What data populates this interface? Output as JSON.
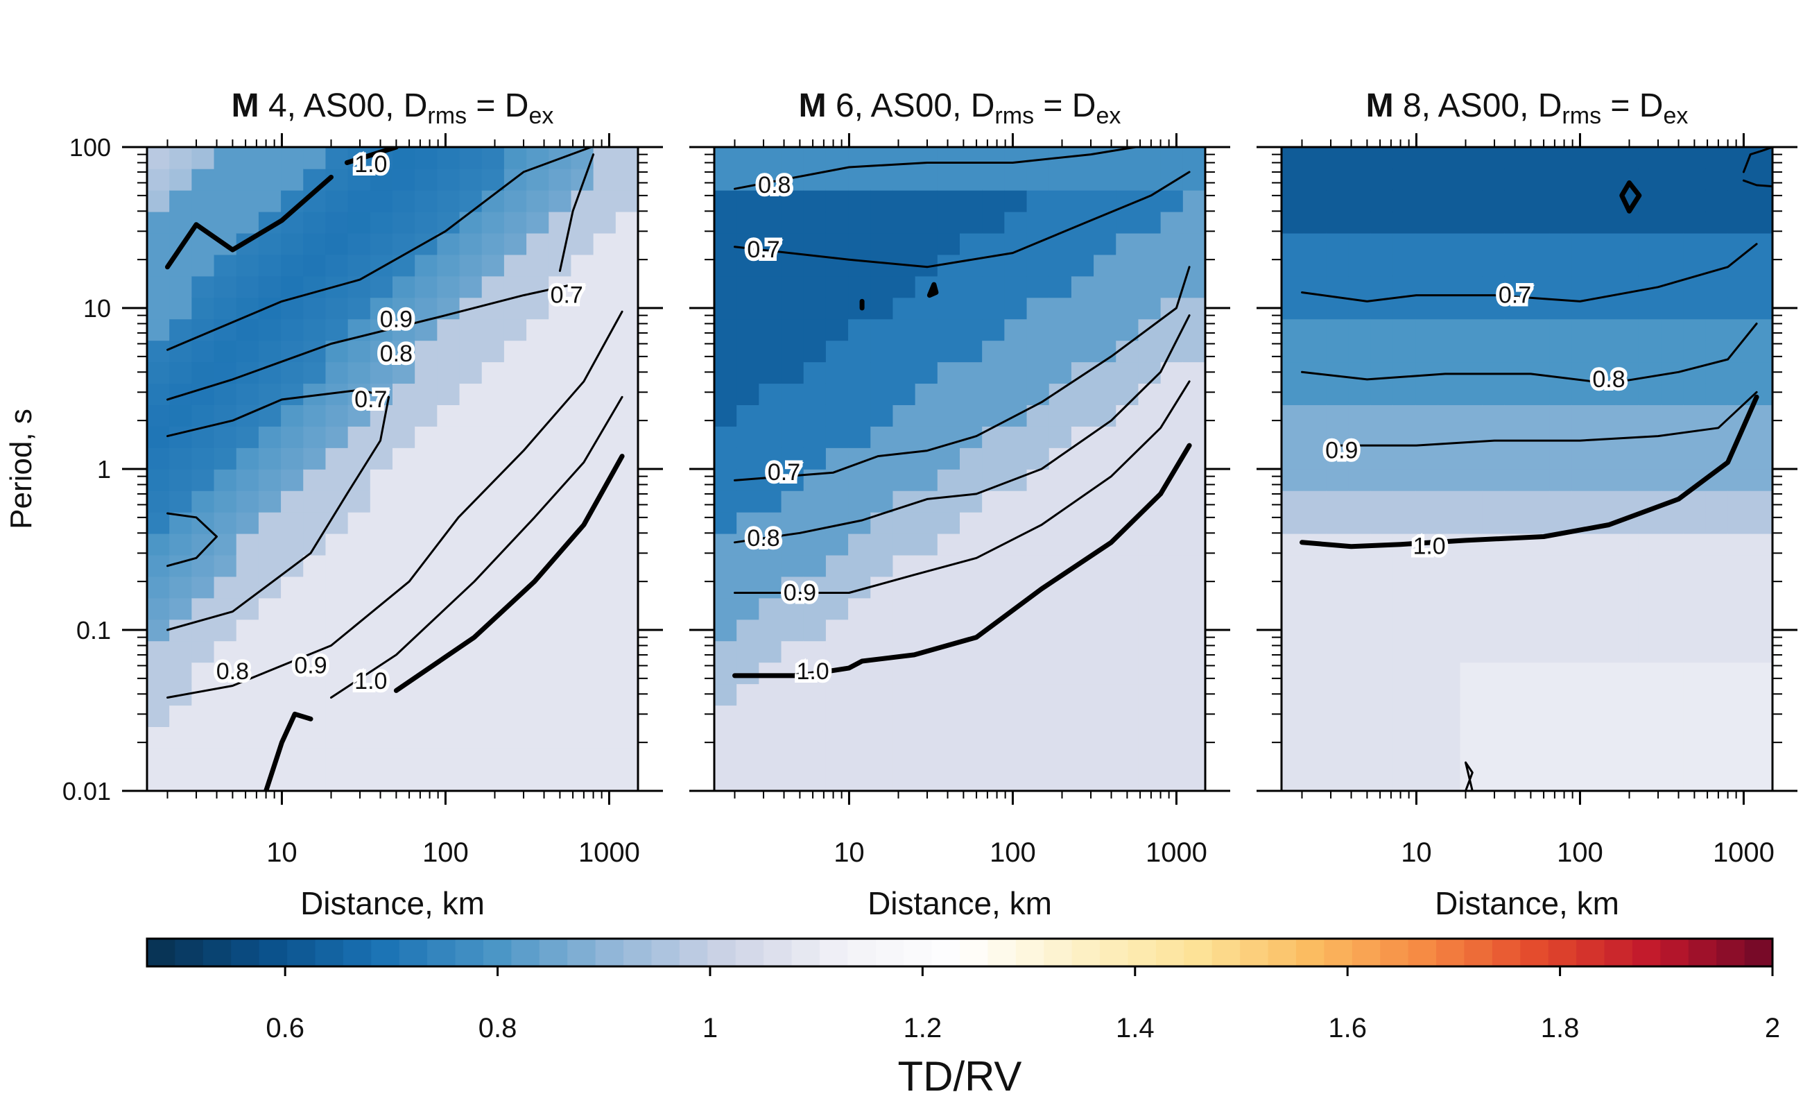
{
  "chart_data": {
    "type": "heatmap",
    "panels": [
      {
        "title": {
          "bold": "M",
          "rest": " 4, AS00, D",
          "sub1": "rms",
          "eq": " = D",
          "sub2": "ex"
        },
        "xlabel": "Distance, km",
        "ylabel": "Period, s",
        "x_scale": "log",
        "y_scale": "log",
        "xlim": [
          1.5,
          1500
        ],
        "ylim": [
          0.01,
          100
        ],
        "x_ticks": [
          "10",
          "100",
          "1000"
        ],
        "y_ticks": [
          "0.01",
          "0.1",
          "1",
          "10",
          "100"
        ],
        "contours": [
          {
            "level": "1.0",
            "bold": true,
            "points": [
              [
                2,
                18
              ],
              [
                3,
                33
              ],
              [
                5,
                23
              ],
              [
                10,
                35
              ],
              [
                20,
                65
              ]
            ]
          },
          {
            "level": "1.0",
            "bold": true,
            "points": [
              [
                25,
                80
              ],
              [
                50,
                100
              ]
            ]
          },
          {
            "level": "0.9",
            "bold": false,
            "points": [
              [
                2,
                5.5
              ],
              [
                10,
                11
              ],
              [
                30,
                15
              ],
              [
                100,
                30
              ],
              [
                300,
                70
              ],
              [
                1000,
                110
              ]
            ]
          },
          {
            "level": "0.8",
            "bold": false,
            "points": [
              [
                2,
                2.7
              ],
              [
                5,
                3.6
              ],
              [
                20,
                6
              ],
              [
                100,
                9
              ],
              [
                300,
                12
              ],
              [
                600,
                14
              ]
            ]
          },
          {
            "level": "0.7",
            "bold": false,
            "points": [
              [
                500,
                17
              ],
              [
                600,
                40
              ],
              [
                800,
                90
              ]
            ]
          },
          {
            "level": "0.7",
            "bold": false,
            "points": [
              [
                2,
                1.6
              ],
              [
                5,
                2
              ],
              [
                10,
                2.7
              ],
              [
                30,
                3.1
              ],
              [
                45,
                2.8
              ],
              [
                40,
                1.5
              ],
              [
                25,
                0.7
              ],
              [
                15,
                0.3
              ],
              [
                5,
                0.13
              ],
              [
                2,
                0.1
              ]
            ]
          },
          {
            "level": "0.7",
            "bold": false,
            "points": [
              [
                2,
                0.53
              ],
              [
                3,
                0.5
              ],
              [
                4,
                0.38
              ],
              [
                3,
                0.28
              ],
              [
                2,
                0.25
              ]
            ]
          },
          {
            "level": "0.8",
            "bold": false,
            "points": [
              [
                2,
                0.038
              ],
              [
                5,
                0.045
              ],
              [
                20,
                0.08
              ],
              [
                60,
                0.2
              ],
              [
                120,
                0.5
              ],
              [
                300,
                1.3
              ],
              [
                700,
                3.5
              ],
              [
                1200,
                9.5
              ]
            ]
          },
          {
            "level": "0.9",
            "bold": false,
            "points": [
              [
                20,
                0.038
              ],
              [
                50,
                0.07
              ],
              [
                150,
                0.2
              ],
              [
                350,
                0.5
              ],
              [
                700,
                1.1
              ],
              [
                1200,
                2.8
              ]
            ]
          },
          {
            "level": "1.0",
            "bold": true,
            "points": [
              [
                8,
                0.01
              ],
              [
                10,
                0.02
              ],
              [
                12,
                0.03
              ],
              [
                15,
                0.028
              ]
            ]
          },
          {
            "level": "1.0",
            "bold": true,
            "points": [
              [
                50,
                0.042
              ],
              [
                150,
                0.09
              ],
              [
                350,
                0.2
              ],
              [
                700,
                0.45
              ],
              [
                1200,
                1.2
              ]
            ]
          }
        ],
        "labels": [
          {
            "text": "1.0",
            "x": 35,
            "y": 78
          },
          {
            "text": "0.9",
            "x": 50,
            "y": 8.5
          },
          {
            "text": "0.8",
            "x": 50,
            "y": 5.2
          },
          {
            "text": "0.7",
            "x": 35,
            "y": 2.7
          },
          {
            "text": "0.7",
            "x": 550,
            "y": 12
          },
          {
            "text": "0.8",
            "x": 5,
            "y": 0.055
          },
          {
            "text": "0.9",
            "x": 15,
            "y": 0.06
          },
          {
            "text": "1.0",
            "x": 35,
            "y": 0.048
          }
        ]
      },
      {
        "title": {
          "bold": "M",
          "rest": " 6, AS00, D",
          "sub1": "rms",
          "eq": " = D",
          "sub2": "ex"
        },
        "xlabel": "Distance, km",
        "x_scale": "log",
        "y_scale": "log",
        "xlim": [
          1.5,
          1500
        ],
        "ylim": [
          0.01,
          100
        ],
        "x_ticks": [
          "10",
          "100",
          "1000"
        ],
        "y_ticks": [
          "0.01",
          "0.1",
          "1",
          "10",
          "100"
        ],
        "contours": [
          {
            "level": "0.8",
            "bold": false,
            "points": [
              [
                2,
                55
              ],
              [
                10,
                75
              ],
              [
                30,
                80
              ],
              [
                100,
                80
              ],
              [
                300,
                90
              ],
              [
                1000,
                110
              ]
            ]
          },
          {
            "level": "0.7",
            "bold": false,
            "points": [
              [
                2,
                24
              ],
              [
                10,
                20
              ],
              [
                30,
                18
              ],
              [
                100,
                22
              ],
              [
                300,
                35
              ],
              [
                700,
                50
              ],
              [
                1200,
                70
              ]
            ]
          },
          {
            "level": "0.7",
            "bold": false,
            "points": [
              [
                2,
                0.85
              ],
              [
                8,
                0.95
              ],
              [
                15,
                1.2
              ],
              [
                30,
                1.3
              ],
              [
                60,
                1.6
              ],
              [
                150,
                2.6
              ],
              [
                400,
                5
              ],
              [
                1000,
                10
              ],
              [
                1200,
                18
              ]
            ]
          },
          {
            "level": "0.8",
            "bold": false,
            "points": [
              [
                2,
                0.35
              ],
              [
                5,
                0.4
              ],
              [
                12,
                0.48
              ],
              [
                30,
                0.65
              ],
              [
                60,
                0.7
              ],
              [
                150,
                1
              ],
              [
                400,
                2
              ],
              [
                800,
                4
              ],
              [
                1200,
                9
              ]
            ]
          },
          {
            "level": "0.9",
            "bold": false,
            "points": [
              [
                2,
                0.17
              ],
              [
                10,
                0.17
              ],
              [
                25,
                0.22
              ],
              [
                60,
                0.28
              ],
              [
                150,
                0.45
              ],
              [
                400,
                0.9
              ],
              [
                800,
                1.8
              ],
              [
                1200,
                3.5
              ]
            ]
          },
          {
            "level": "1.0",
            "bold": true,
            "points": [
              [
                2,
                0.052
              ],
              [
                5,
                0.052
              ],
              [
                10,
                0.058
              ],
              [
                12,
                0.064
              ],
              [
                25,
                0.07
              ],
              [
                60,
                0.09
              ],
              [
                150,
                0.18
              ],
              [
                400,
                0.35
              ],
              [
                800,
                0.7
              ],
              [
                1200,
                1.4
              ]
            ]
          },
          {
            "level": "0.6",
            "bold": true,
            "points": [
              [
                12,
                10
              ],
              [
                12,
                11
              ]
            ]
          },
          {
            "level": "0.6",
            "bold": true,
            "points": [
              [
                31,
                12
              ],
              [
                33,
                14
              ],
              [
                34,
                12.5
              ],
              [
                31,
                12
              ]
            ]
          }
        ],
        "labels": [
          {
            "text": "0.8",
            "x": 3.5,
            "y": 58
          },
          {
            "text": "0.7",
            "x": 3,
            "y": 23
          },
          {
            "text": "0.7",
            "x": 4,
            "y": 0.95
          },
          {
            "text": "0.8",
            "x": 3,
            "y": 0.37
          },
          {
            "text": "0.9",
            "x": 5,
            "y": 0.17
          },
          {
            "text": "1.0",
            "x": 6,
            "y": 0.055
          }
        ]
      },
      {
        "title": {
          "bold": "M",
          "rest": " 8, AS00, D",
          "sub1": "rms",
          "eq": " = D",
          "sub2": "ex"
        },
        "xlabel": "Distance, km",
        "x_scale": "log",
        "y_scale": "log",
        "xlim": [
          1.5,
          1500
        ],
        "ylim": [
          0.01,
          100
        ],
        "x_ticks": [
          "10",
          "100",
          "1000"
        ],
        "y_ticks": [
          "0.01",
          "0.1",
          "1",
          "10",
          "100"
        ],
        "contours": [
          {
            "level": "0.6",
            "bold": false,
            "points": [
              [
                1000,
                70
              ],
              [
                1100,
                90
              ],
              [
                1300,
                95
              ],
              [
                1500,
                100
              ]
            ]
          },
          {
            "level": "0.6",
            "bold": false,
            "points": [
              [
                1000,
                62
              ],
              [
                1200,
                58
              ],
              [
                1500,
                57
              ]
            ]
          },
          {
            "level": "0.6",
            "bold": true,
            "points": [
              [
                200,
                60
              ],
              [
                230,
                50
              ],
              [
                200,
                40
              ],
              [
                180,
                50
              ],
              [
                200,
                60
              ]
            ]
          },
          {
            "level": "0.7",
            "bold": false,
            "points": [
              [
                2,
                12.5
              ],
              [
                5,
                11
              ],
              [
                10,
                12
              ],
              [
                30,
                12
              ],
              [
                100,
                11
              ],
              [
                300,
                13.5
              ],
              [
                800,
                18
              ],
              [
                1200,
                25
              ]
            ]
          },
          {
            "level": "0.8",
            "bold": false,
            "points": [
              [
                2,
                4
              ],
              [
                5,
                3.6
              ],
              [
                15,
                3.9
              ],
              [
                50,
                3.9
              ],
              [
                150,
                3.4
              ],
              [
                400,
                4
              ],
              [
                800,
                4.8
              ],
              [
                1200,
                8
              ]
            ]
          },
          {
            "level": "0.9",
            "bold": false,
            "points": [
              [
                3,
                1.4
              ],
              [
                10,
                1.4
              ],
              [
                30,
                1.5
              ],
              [
                100,
                1.5
              ],
              [
                300,
                1.6
              ],
              [
                700,
                1.8
              ],
              [
                1200,
                3
              ]
            ]
          },
          {
            "level": "1.0",
            "bold": true,
            "points": [
              [
                2,
                0.35
              ],
              [
                4,
                0.33
              ],
              [
                8,
                0.34
              ],
              [
                20,
                0.36
              ],
              [
                60,
                0.38
              ],
              [
                150,
                0.45
              ],
              [
                400,
                0.65
              ],
              [
                800,
                1.1
              ],
              [
                1200,
                2.8
              ]
            ]
          },
          {
            "level": "1.2",
            "bold": false,
            "points": [
              [
                20,
                0.01
              ],
              [
                22,
                0.013
              ],
              [
                20,
                0.015
              ],
              [
                22,
                0.01
              ]
            ]
          }
        ],
        "labels": [
          {
            "text": "0.7",
            "x": 40,
            "y": 12
          },
          {
            "text": "0.8",
            "x": 150,
            "y": 3.6
          },
          {
            "text": "0.9",
            "x": 3.5,
            "y": 1.3
          },
          {
            "text": "1.0",
            "x": 12,
            "y": 0.33
          }
        ]
      }
    ],
    "colorbar": {
      "label": "TD/RV",
      "range": [
        0.47,
        2.0
      ],
      "tick_values": [
        0.6,
        0.8,
        1.0,
        1.2,
        1.4,
        1.6,
        1.8,
        2.0
      ],
      "tick_labels": [
        "0.6",
        "0.8",
        "1",
        "1.2",
        "1.4",
        "1.6",
        "1.8",
        "2"
      ],
      "colors": [
        "#08304f",
        "#0a4f88",
        "#1a72b4",
        "#4a95c6",
        "#92b7d8",
        "#cdd3e6",
        "#f2f2f7",
        "#ffffff",
        "#fdf1c8",
        "#fde49a",
        "#fbbd62",
        "#f68a43",
        "#e3492c",
        "#c0172c",
        "#6e0828"
      ]
    },
    "grid": false
  }
}
